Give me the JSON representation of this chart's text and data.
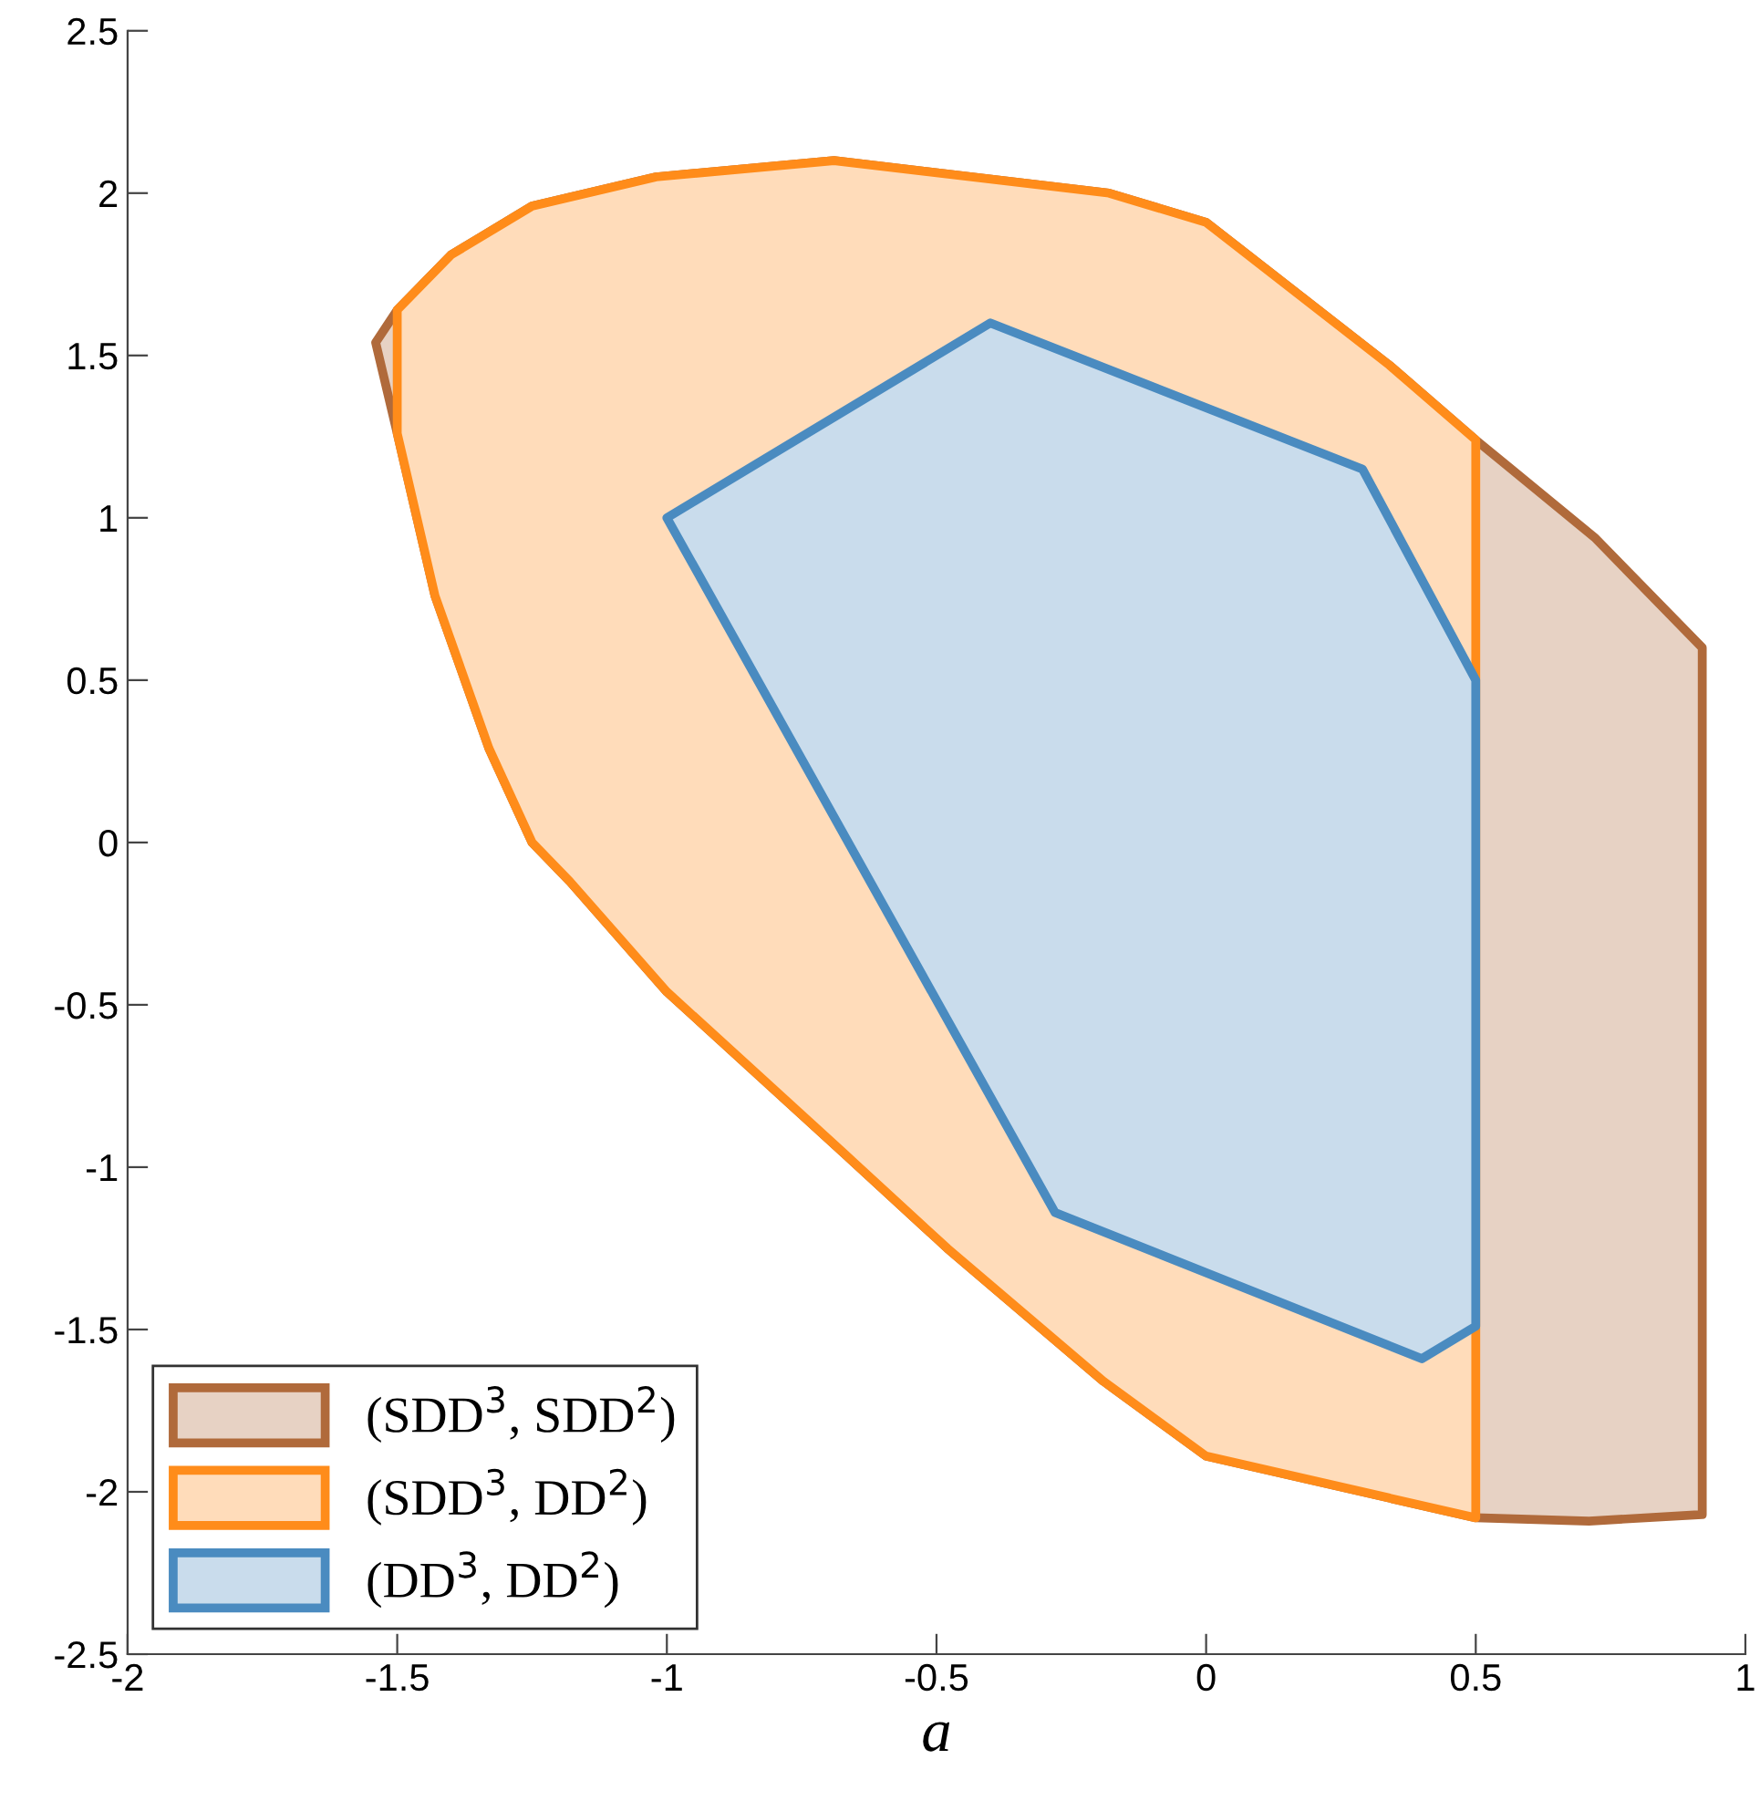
{
  "chart_data": {
    "type": "area",
    "xlabel": "a",
    "xlim": [
      -2,
      1
    ],
    "ylim": [
      -2.5,
      2.5
    ],
    "xticks": [
      -2,
      -1.5,
      -1,
      -0.5,
      0,
      0.5,
      1
    ],
    "yticks": [
      -2.5,
      -2,
      -1.5,
      -1,
      -0.5,
      0,
      0.5,
      1,
      1.5,
      2,
      2.5
    ],
    "grid": false,
    "legend": "bottom left",
    "series": [
      {
        "name": "(SDD$^{3}$, SDD$^{2}$)",
        "color": "#b06a3b",
        "x": [
          -1.5,
          -1.4,
          -1.25,
          -1.02,
          -0.69,
          -0.18,
          0.0,
          0.34,
          0.5,
          0.72,
          0.92,
          0.92,
          0.71,
          0.5,
          0.0,
          -0.19,
          -0.48,
          -0.67,
          -1.0,
          -1.18,
          -1.25,
          -1.33,
          -1.43,
          -1.5,
          -1.54
        ],
        "values": [
          1.64,
          1.81,
          1.96,
          2.05,
          2.1,
          2.0,
          1.91,
          1.47,
          1.24,
          0.94,
          0.6,
          -2.07,
          -2.09,
          -2.08,
          -1.89,
          -1.66,
          -1.25,
          -0.96,
          -0.46,
          -0.12,
          0.0,
          0.29,
          0.76,
          1.26,
          1.54
        ]
      },
      {
        "name": "(SDD$^{3}$, DD$^{2}$)",
        "color": "#ff8c1a",
        "x": [
          -1.5,
          -1.4,
          -1.25,
          -1.02,
          -0.69,
          -0.18,
          0.0,
          0.34,
          0.5,
          0.5,
          0.0,
          -0.19,
          -0.48,
          -0.67,
          -1.0,
          -1.18,
          -1.25,
          -1.33,
          -1.43,
          -1.5
        ],
        "values": [
          1.64,
          1.81,
          1.96,
          2.05,
          2.1,
          2.0,
          1.91,
          1.47,
          1.24,
          -2.08,
          -1.89,
          -1.66,
          -1.25,
          -0.96,
          -0.46,
          -0.12,
          0.0,
          0.29,
          0.76,
          1.26
        ]
      },
      {
        "name": "(DD$^{3}$, DD$^{2}$)",
        "color": "#4a8bc0",
        "x": [
          -1.0,
          -0.4,
          0.29,
          0.5,
          0.5,
          0.4,
          -0.28
        ],
        "values": [
          1.0,
          1.6,
          1.15,
          0.5,
          -1.49,
          -1.59,
          -1.14
        ]
      }
    ]
  }
}
